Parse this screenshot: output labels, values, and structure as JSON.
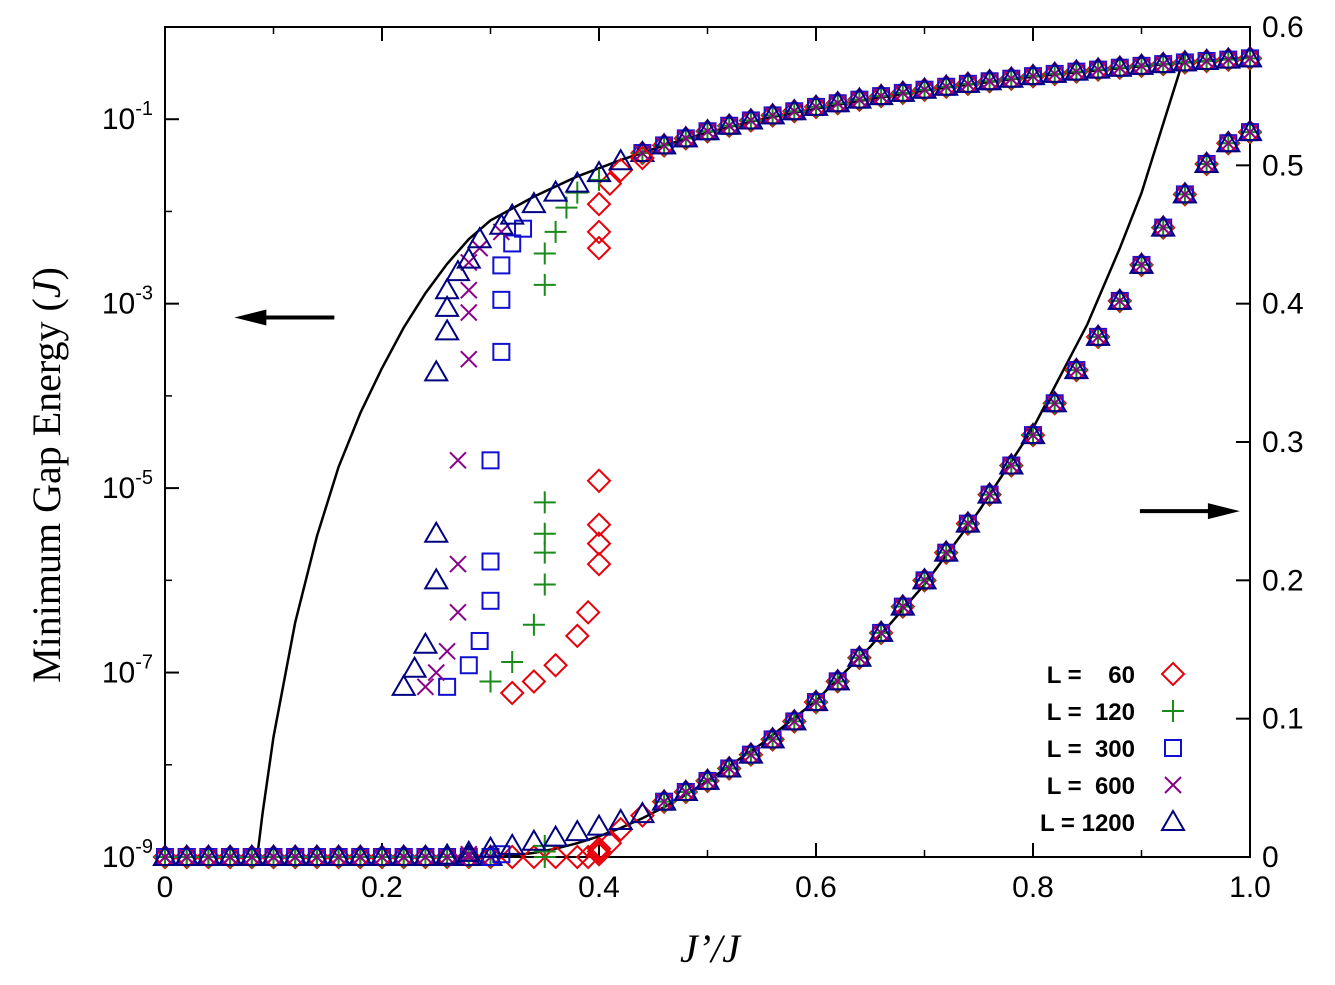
{
  "chart_data": {
    "type": "scatter",
    "title": "",
    "xlabel": "J’/J",
    "ylabel_left": "Minimum Gap Energy (J)",
    "ylabel_left_text": "Minimum Gap Energy (",
    "ylabel_left_unit": "J",
    "ylabel_left_close": ")",
    "ylabel_right": "",
    "xlim": [
      0.0,
      1.0
    ],
    "ylim_left": [
      1e-09,
      1.0
    ],
    "yscale_left": "log",
    "ylim_right": [
      0.0,
      0.6
    ],
    "yscale_right": "linear",
    "x_ticks": [
      "0",
      "0.2",
      "0.4",
      "0.6",
      "0.8",
      "1.0"
    ],
    "x_tick_values": [
      0,
      0.2,
      0.4,
      0.6,
      0.8,
      1.0
    ],
    "y_left_ticks": [
      {
        "base": "10",
        "exp": "-9",
        "value": 1e-09
      },
      {
        "base": "10",
        "exp": "-7",
        "value": 1e-07
      },
      {
        "base": "10",
        "exp": "-5",
        "value": 1e-05
      },
      {
        "base": "10",
        "exp": "-3",
        "value": 0.001
      },
      {
        "base": "10",
        "exp": "-1",
        "value": 0.1
      }
    ],
    "y_right_ticks": [
      "0",
      "0.1",
      "0.2",
      "0.3",
      "0.4",
      "0.5",
      "0.6"
    ],
    "y_right_tick_values": [
      0,
      0.1,
      0.2,
      0.3,
      0.4,
      0.5,
      0.6
    ],
    "legend_position": "bottom-right",
    "arrows": [
      {
        "points_to": "left-axis",
        "x": 0.11,
        "y_right": 0.39
      },
      {
        "points_to": "right-axis",
        "x": 0.94,
        "y_right": 0.25
      }
    ],
    "series": [
      {
        "name": "L =    60",
        "marker": "diamond",
        "color": "#e8000b",
        "log_points": [
          [
            0.32,
            6e-08
          ],
          [
            0.34,
            8e-08
          ],
          [
            0.36,
            1.2e-07
          ],
          [
            0.38,
            2.5e-07
          ],
          [
            0.39,
            4.5e-07
          ],
          [
            0.4,
            1.5e-06
          ],
          [
            0.4,
            2.5e-06
          ],
          [
            0.4,
            4e-06
          ],
          [
            0.4,
            1.2e-05
          ],
          [
            0.4,
            0.004
          ],
          [
            0.4,
            0.006
          ],
          [
            0.4,
            0.012
          ],
          [
            0.41,
            0.02
          ],
          [
            0.42,
            0.028
          ],
          [
            0.44,
            0.038
          ]
        ],
        "right_points": [
          [
            0.32,
            0.0
          ],
          [
            0.34,
            0.0
          ],
          [
            0.36,
            0.0
          ],
          [
            0.38,
            0.0
          ],
          [
            0.39,
            0.0
          ],
          [
            0.4,
            0.002
          ],
          [
            0.4,
            0.004
          ],
          [
            0.4,
            0.006
          ],
          [
            0.41,
            0.01
          ],
          [
            0.42,
            0.02
          ],
          [
            0.44,
            0.03
          ]
        ]
      },
      {
        "name": "L =  120",
        "marker": "plus",
        "color": "#1a8a1a",
        "log_points": [
          [
            0.3,
            8e-08
          ],
          [
            0.32,
            1.3e-07
          ],
          [
            0.34,
            3.3e-07
          ],
          [
            0.35,
            9e-07
          ],
          [
            0.35,
            2e-06
          ],
          [
            0.35,
            3.2e-06
          ],
          [
            0.35,
            7e-06
          ],
          [
            0.35,
            0.0016
          ],
          [
            0.35,
            0.0035
          ],
          [
            0.36,
            0.006
          ],
          [
            0.37,
            0.011
          ],
          [
            0.38,
            0.016
          ],
          [
            0.4,
            0.022
          ]
        ],
        "right_points": [
          [
            0.35,
            0.0
          ],
          [
            0.35,
            0.004
          ],
          [
            0.35,
            0.008
          ]
        ]
      },
      {
        "name": "L =  300",
        "marker": "square",
        "color": "#1010d0",
        "log_points": [
          [
            0.26,
            7e-08
          ],
          [
            0.28,
            1.2e-07
          ],
          [
            0.29,
            2.2e-07
          ],
          [
            0.3,
            6e-07
          ],
          [
            0.3,
            1.6e-06
          ],
          [
            0.3,
            2e-05
          ],
          [
            0.31,
            0.0003
          ],
          [
            0.31,
            0.0011
          ],
          [
            0.31,
            0.0026
          ],
          [
            0.32,
            0.0045
          ],
          [
            0.33,
            0.0065
          ]
        ],
        "right_points": [
          [
            0.3,
            0.0
          ],
          [
            0.31,
            0.002
          ]
        ]
      },
      {
        "name": "L =  600",
        "marker": "cross",
        "color": "#8b008b",
        "log_points": [
          [
            0.24,
            7e-08
          ],
          [
            0.25,
            1e-07
          ],
          [
            0.26,
            1.7e-07
          ],
          [
            0.27,
            4.5e-07
          ],
          [
            0.27,
            1.5e-06
          ],
          [
            0.27,
            2e-05
          ],
          [
            0.28,
            0.00025
          ],
          [
            0.28,
            0.0008
          ],
          [
            0.28,
            0.0014
          ],
          [
            0.28,
            0.0028
          ],
          [
            0.29,
            0.004
          ],
          [
            0.31,
            0.006
          ]
        ],
        "right_points": [
          [
            0.27,
            0.0
          ],
          [
            0.28,
            0.002
          ]
        ]
      },
      {
        "name": "L = 1200",
        "marker": "triangle",
        "color": "#000080",
        "log_points": [
          [
            0.22,
            7e-08
          ],
          [
            0.23,
            1.1e-07
          ],
          [
            0.24,
            2e-07
          ],
          [
            0.25,
            1e-06
          ],
          [
            0.25,
            3.2e-06
          ],
          [
            0.25,
            0.00018
          ],
          [
            0.26,
            0.0005
          ],
          [
            0.26,
            0.0009
          ],
          [
            0.26,
            0.0014
          ],
          [
            0.27,
            0.0022
          ],
          [
            0.28,
            0.003
          ],
          [
            0.29,
            0.005
          ],
          [
            0.31,
            0.007
          ],
          [
            0.32,
            0.009
          ],
          [
            0.34,
            0.012
          ],
          [
            0.36,
            0.016
          ],
          [
            0.38,
            0.02
          ],
          [
            0.4,
            0.026
          ],
          [
            0.42,
            0.035
          ]
        ],
        "right_points": [
          [
            0.24,
            0.0
          ],
          [
            0.26,
            0.001
          ],
          [
            0.28,
            0.003
          ],
          [
            0.3,
            0.006
          ],
          [
            0.32,
            0.008
          ],
          [
            0.34,
            0.011
          ],
          [
            0.36,
            0.014
          ],
          [
            0.38,
            0.018
          ],
          [
            0.4,
            0.022
          ],
          [
            0.42,
            0.026
          ],
          [
            0.44,
            0.031
          ]
        ]
      }
    ],
    "all_sizes_log_points": [
      [
        0.0,
        1e-09
      ],
      [
        0.02,
        1e-09
      ],
      [
        0.04,
        1e-09
      ],
      [
        0.06,
        1e-09
      ],
      [
        0.08,
        1e-09
      ],
      [
        0.1,
        1e-09
      ],
      [
        0.12,
        1e-09
      ],
      [
        0.14,
        1e-09
      ],
      [
        0.16,
        1e-09
      ],
      [
        0.18,
        1e-09
      ],
      [
        0.2,
        1e-09
      ],
      [
        0.22,
        1e-09
      ],
      [
        0.24,
        1e-09
      ],
      [
        0.26,
        1e-09
      ],
      [
        0.28,
        1e-09
      ],
      [
        0.3,
        1e-09
      ],
      [
        0.44,
        0.043
      ],
      [
        0.46,
        0.052
      ],
      [
        0.48,
        0.062
      ],
      [
        0.5,
        0.074
      ],
      [
        0.52,
        0.085
      ],
      [
        0.54,
        0.097
      ],
      [
        0.56,
        0.11
      ],
      [
        0.58,
        0.122
      ],
      [
        0.6,
        0.136
      ],
      [
        0.62,
        0.149
      ],
      [
        0.64,
        0.163
      ],
      [
        0.66,
        0.178
      ],
      [
        0.68,
        0.193
      ],
      [
        0.7,
        0.209
      ],
      [
        0.72,
        0.225
      ],
      [
        0.74,
        0.242
      ],
      [
        0.76,
        0.258
      ],
      [
        0.78,
        0.275
      ],
      [
        0.8,
        0.293
      ],
      [
        0.82,
        0.31
      ],
      [
        0.84,
        0.328
      ],
      [
        0.86,
        0.345
      ],
      [
        0.88,
        0.362
      ],
      [
        0.9,
        0.379
      ],
      [
        0.92,
        0.396
      ],
      [
        0.94,
        0.413
      ],
      [
        0.96,
        0.428
      ],
      [
        0.98,
        0.443
      ],
      [
        1.0,
        0.457
      ]
    ],
    "all_sizes_right_points": [
      [
        0.0,
        0.0
      ],
      [
        0.02,
        0.0
      ],
      [
        0.04,
        0.0
      ],
      [
        0.06,
        0.0
      ],
      [
        0.08,
        0.0
      ],
      [
        0.1,
        0.0
      ],
      [
        0.12,
        0.0
      ],
      [
        0.14,
        0.0
      ],
      [
        0.16,
        0.0
      ],
      [
        0.18,
        0.0
      ],
      [
        0.2,
        0.0
      ],
      [
        0.22,
        0.0
      ],
      [
        0.46,
        0.04
      ],
      [
        0.48,
        0.047
      ],
      [
        0.5,
        0.055
      ],
      [
        0.52,
        0.064
      ],
      [
        0.54,
        0.074
      ],
      [
        0.56,
        0.085
      ],
      [
        0.58,
        0.098
      ],
      [
        0.6,
        0.112
      ],
      [
        0.62,
        0.127
      ],
      [
        0.64,
        0.144
      ],
      [
        0.66,
        0.162
      ],
      [
        0.68,
        0.181
      ],
      [
        0.7,
        0.2
      ],
      [
        0.72,
        0.22
      ],
      [
        0.74,
        0.241
      ],
      [
        0.76,
        0.262
      ],
      [
        0.78,
        0.283
      ],
      [
        0.8,
        0.305
      ],
      [
        0.82,
        0.328
      ],
      [
        0.84,
        0.352
      ],
      [
        0.86,
        0.376
      ],
      [
        0.88,
        0.402
      ],
      [
        0.9,
        0.428
      ],
      [
        0.92,
        0.455
      ],
      [
        0.94,
        0.479
      ],
      [
        0.96,
        0.501
      ],
      [
        0.98,
        0.516
      ],
      [
        1.0,
        0.524
      ]
    ],
    "curves": [
      {
        "name": "",
        "axis": "left",
        "x": [
          0.085,
          0.09,
          0.1,
          0.12,
          0.14,
          0.16,
          0.18,
          0.2,
          0.22,
          0.24,
          0.26,
          0.28,
          0.3,
          0.34,
          0.38,
          0.42,
          0.46,
          0.5,
          0.55,
          0.6,
          0.65,
          0.7,
          0.75,
          0.8,
          0.85,
          0.9,
          0.95,
          1.0
        ],
        "y": [
          1e-09,
          3e-09,
          2e-08,
          3.5e-07,
          3e-06,
          1.7e-05,
          6.5e-05,
          0.0002,
          0.00055,
          0.0013,
          0.0027,
          0.005,
          0.008,
          0.0145,
          0.024,
          0.036,
          0.052,
          0.072,
          0.1,
          0.13,
          0.165,
          0.205,
          0.245,
          0.29,
          0.33,
          0.375,
          0.42,
          0.47
        ]
      },
      {
        "name": "",
        "axis": "right",
        "x": [
          0.3,
          0.32,
          0.34,
          0.36,
          0.38,
          0.4,
          0.42,
          0.44,
          0.46,
          0.48,
          0.5,
          0.55,
          0.6,
          0.65,
          0.7,
          0.75,
          0.8,
          0.85,
          0.88,
          0.9,
          0.92,
          0.94
        ],
        "y": [
          0.0,
          0.001,
          0.003,
          0.006,
          0.01,
          0.015,
          0.021,
          0.028,
          0.036,
          0.045,
          0.055,
          0.082,
          0.113,
          0.152,
          0.197,
          0.25,
          0.31,
          0.385,
          0.44,
          0.48,
          0.53,
          0.58
        ]
      }
    ]
  }
}
